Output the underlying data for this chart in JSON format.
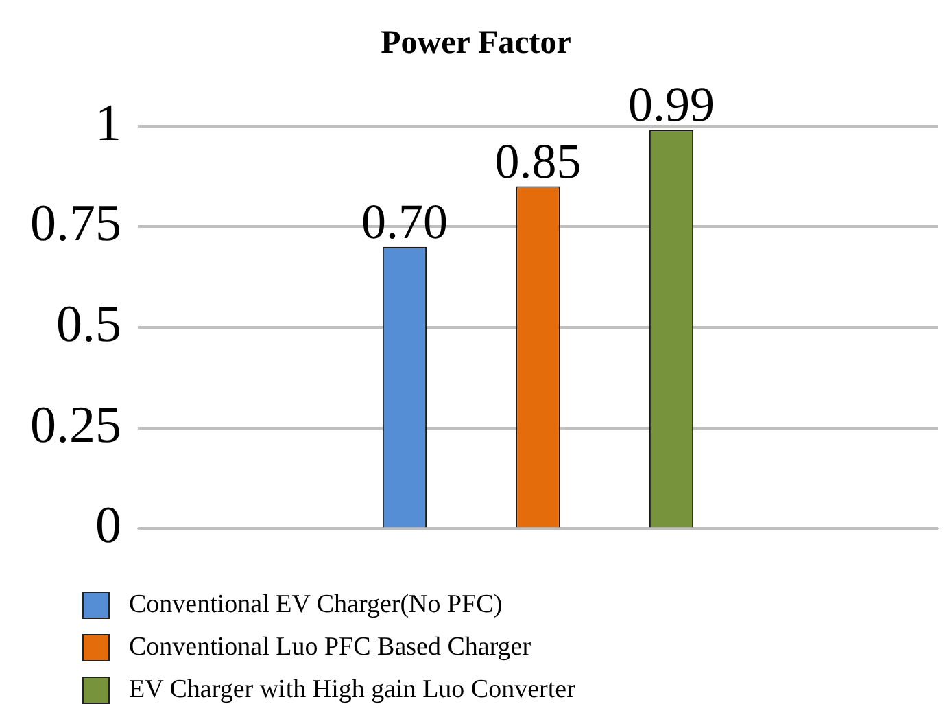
{
  "chart_data": {
    "type": "bar",
    "title": "Power Factor",
    "categories": [
      null
    ],
    "series": [
      {
        "name": "Conventional EV Charger(No PFC)",
        "color": "#558ed5",
        "values": [
          0.7
        ],
        "value_labels": [
          "0.70"
        ]
      },
      {
        "name": "Conventional Luo PFC Based Charger",
        "color": "#e46c0a",
        "values": [
          0.85
        ],
        "value_labels": [
          "0.85"
        ]
      },
      {
        "name": "EV Charger with High gain Luo Converter",
        "color": "#77933c",
        "values": [
          0.99
        ],
        "value_labels": [
          "0.99"
        ]
      }
    ],
    "ylim": [
      0,
      1
    ],
    "yticks": [
      0,
      0.25,
      0.5,
      0.75,
      1
    ],
    "grid": "y",
    "legend": "bottom left"
  }
}
